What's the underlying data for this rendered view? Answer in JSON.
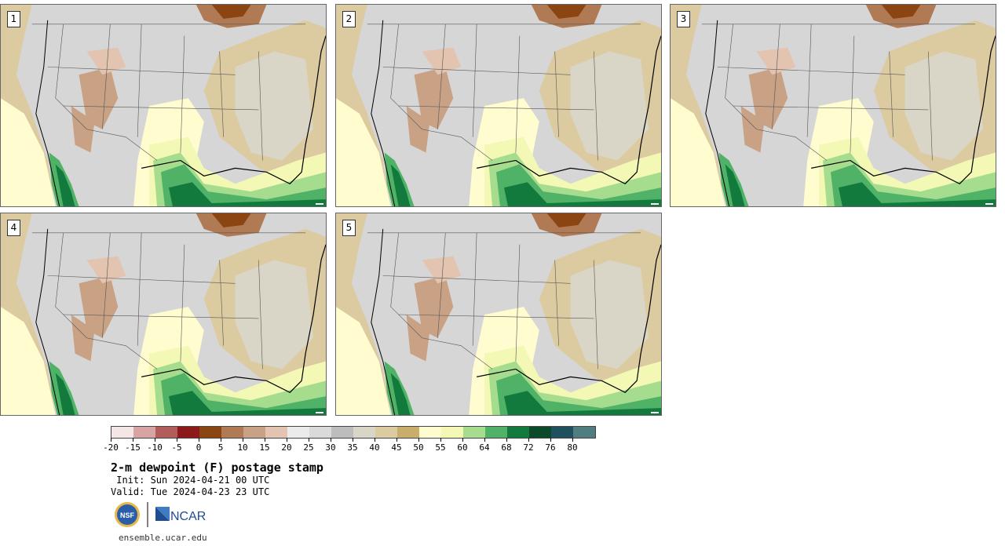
{
  "panels": [
    {
      "label": "1"
    },
    {
      "label": "2"
    },
    {
      "label": "3"
    },
    {
      "label": "4"
    },
    {
      "label": "5"
    }
  ],
  "colorbar": {
    "colors": [
      "#f5e6e6",
      "#d7a3a3",
      "#b25c5c",
      "#8c1a1a",
      "#8b4513",
      "#b07a55",
      "#c9a184",
      "#e2c4b0",
      "#ebebeb",
      "#dadada",
      "#bdbdbd",
      "#d9d5c7",
      "#dccba0",
      "#c9ad6c",
      "#fffccf",
      "#f3f8b5",
      "#a6dc8e",
      "#4fb267",
      "#137a3e",
      "#0a4a2a",
      "#1e5060",
      "#4f7d80"
    ],
    "tick_labels": [
      "-20",
      "-15",
      "-10",
      "-5",
      "0",
      "5",
      "10",
      "15",
      "20",
      "25",
      "30",
      "35",
      "40",
      "45",
      "50",
      "55",
      "60",
      "64",
      "68",
      "72",
      "76",
      "80"
    ]
  },
  "title": "2-m dewpoint (F) postage stamp",
  "init_line": " Init: Sun 2024-04-21 00 UTC",
  "valid_line": "Valid: Tue 2024-04-23 23 UTC",
  "logos": {
    "nsf": "NSF",
    "ncar": "NCAR"
  },
  "site": "ensemble.ucar.edu"
}
